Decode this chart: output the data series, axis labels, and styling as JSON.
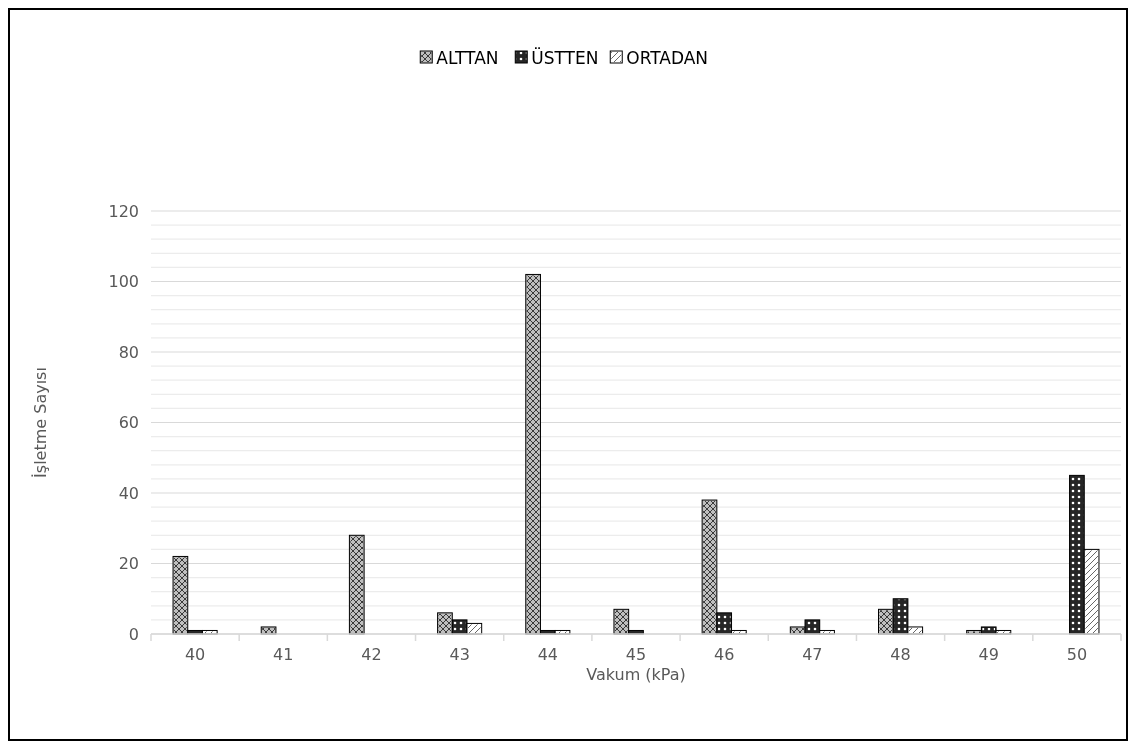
{
  "chart_data": {
    "type": "bar",
    "xlabel": "Vakum (kPa)",
    "ylabel": "İşletme Sayısı",
    "categories": [
      "40",
      "41",
      "42",
      "43",
      "44",
      "45",
      "46",
      "47",
      "48",
      "49",
      "50"
    ],
    "series": [
      {
        "name": "ALTTAN",
        "color": "#bfbfbf",
        "values": [
          22,
          2,
          28,
          6,
          102,
          7,
          38,
          2,
          7,
          1,
          0
        ]
      },
      {
        "name": "ÜSTTEN",
        "color": "#262626",
        "values": [
          1,
          0,
          0,
          4,
          1,
          1,
          6,
          4,
          10,
          2,
          45
        ]
      },
      {
        "name": "ORTADAN",
        "color": "#ffffff",
        "values": [
          1,
          0,
          0,
          3,
          1,
          0,
          1,
          1,
          2,
          1,
          24
        ]
      }
    ],
    "ylim": [
      0,
      120
    ],
    "yticks": [
      0,
      {
        "value": 4,
        "label": null
      },
      {
        "value": 8,
        "label": null
      },
      {
        "value": 12,
        "label": null
      },
      {
        "value": 16,
        "label": null
      },
      20,
      {
        "value": 24,
        "label": null
      },
      {
        "value": 28,
        "label": null
      },
      {
        "value": 32,
        "label": null
      },
      {
        "value": 36,
        "label": null
      },
      40,
      {
        "value": 44,
        "label": null
      },
      {
        "value": 48,
        "label": null
      },
      {
        "value": 52,
        "label": null
      },
      {
        "value": 56,
        "label": null
      },
      60,
      {
        "value": 64,
        "label": null
      },
      {
        "value": 68,
        "label": null
      },
      {
        "value": 72,
        "label": null
      },
      {
        "value": 76,
        "label": null
      },
      80,
      {
        "value": 84,
        "label": null
      },
      {
        "value": 88,
        "label": null
      },
      {
        "value": 92,
        "label": null
      },
      {
        "value": 96,
        "label": null
      },
      100,
      {
        "value": 104,
        "label": null
      },
      {
        "value": 108,
        "label": null
      },
      {
        "value": 112,
        "label": null
      },
      {
        "value": 116,
        "label": null
      },
      120
    ],
    "grid": "y",
    "legend": "top"
  }
}
